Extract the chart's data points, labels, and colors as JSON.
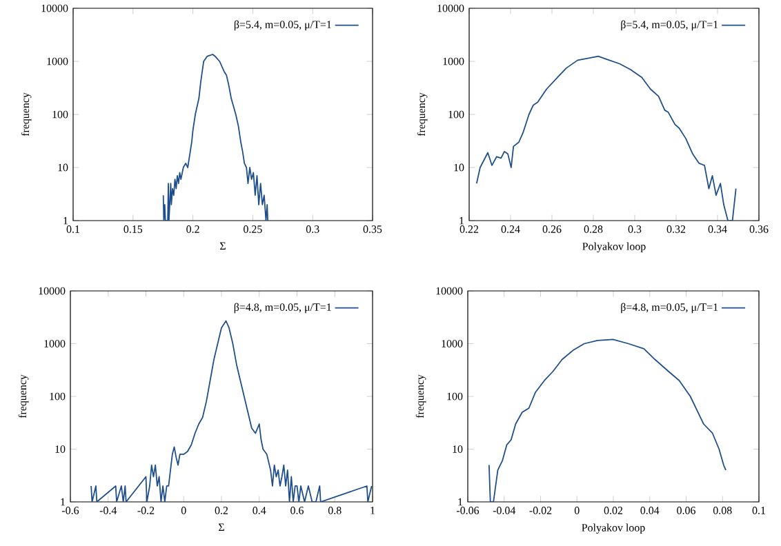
{
  "chart_data": [
    {
      "type": "line",
      "xlabel": "Σ",
      "ylabel": "frequency",
      "xlim": [
        0.1,
        0.35
      ],
      "xticks": [
        0.1,
        0.15,
        0.2,
        0.25,
        0.3,
        0.35
      ],
      "ylim": [
        1,
        10000
      ],
      "yticks": [
        1,
        10,
        100,
        1000,
        10000
      ],
      "log": true,
      "legend": "top right",
      "x": [
        0.1753,
        0.1757,
        0.1765,
        0.177,
        0.179,
        0.1795,
        0.18,
        0.1815,
        0.182,
        0.183,
        0.184,
        0.185,
        0.186,
        0.187,
        0.188,
        0.189,
        0.19,
        0.192,
        0.194,
        0.1957,
        0.199,
        0.2,
        0.202,
        0.205,
        0.2065,
        0.208,
        0.209,
        0.212,
        0.2145,
        0.2165,
        0.2185,
        0.2223,
        0.226,
        0.228,
        0.23,
        0.232,
        0.2358,
        0.238,
        0.24,
        0.2415,
        0.243,
        0.2447,
        0.246,
        0.2475,
        0.249,
        0.2505,
        0.252,
        0.2535,
        0.255,
        0.2565,
        0.258,
        0.2595,
        0.261,
        0.262,
        0.2625
      ],
      "series": [
        {
          "name": "β=5.4, m=0.05, μ/T=1",
          "color": "#1f4e8c",
          "values": [
            3,
            1,
            2,
            1,
            1,
            5,
            1,
            5,
            2,
            4,
            3,
            6,
            4,
            7,
            5,
            8,
            6,
            10,
            12,
            10,
            30,
            50,
            100,
            200,
            400,
            700,
            1000,
            1250,
            1300,
            1350,
            1250,
            1000,
            650,
            550,
            350,
            200,
            100,
            60,
            30,
            20,
            12,
            10,
            5,
            10,
            6,
            8,
            3,
            7,
            2,
            5,
            2,
            3,
            1,
            2,
            1
          ]
        }
      ]
    },
    {
      "type": "line",
      "xlabel": "Polyakov loop",
      "ylabel": "frequency",
      "xlim": [
        0.22,
        0.36
      ],
      "xticks": [
        0.22,
        0.24,
        0.26,
        0.28,
        0.3,
        0.32,
        0.34,
        0.36
      ],
      "ylim": [
        1,
        10000
      ],
      "yticks": [
        1,
        10,
        100,
        1000,
        10000
      ],
      "log": true,
      "legend": "top right",
      "x": [
        0.2236,
        0.2253,
        0.229,
        0.231,
        0.2333,
        0.2354,
        0.237,
        0.2387,
        0.2403,
        0.2414,
        0.244,
        0.246,
        0.2489,
        0.251,
        0.2531,
        0.2574,
        0.2627,
        0.267,
        0.2724,
        0.2777,
        0.2824,
        0.2863,
        0.2927,
        0.298,
        0.3034,
        0.3076,
        0.3115,
        0.3145,
        0.3162,
        0.3194,
        0.3215,
        0.3247,
        0.328,
        0.3311,
        0.3337,
        0.3358,
        0.3375,
        0.3393,
        0.3414,
        0.343,
        0.345,
        0.3472,
        0.3489
      ],
      "series": [
        {
          "name": "β=5.4, m=0.05, μ/T=1",
          "color": "#1f4e8c",
          "values": [
            5,
            10,
            19,
            11,
            16,
            15,
            20,
            18,
            10,
            25,
            30,
            45,
            100,
            150,
            170,
            300,
            500,
            750,
            1050,
            1150,
            1250,
            1100,
            900,
            700,
            500,
            300,
            220,
            120,
            110,
            65,
            55,
            35,
            18,
            12,
            11,
            4,
            7,
            3,
            5,
            2,
            1,
            1,
            4
          ]
        }
      ]
    },
    {
      "type": "line",
      "xlabel": "Σ",
      "ylabel": "frequency",
      "xlim": [
        -0.6,
        1
      ],
      "xticks": [
        -0.6,
        -0.4,
        -0.2,
        0,
        0.2,
        0.4,
        0.6,
        0.8,
        1
      ],
      "ylim": [
        1,
        10000
      ],
      "yticks": [
        1,
        10,
        100,
        1000,
        10000
      ],
      "log": true,
      "legend": "top right",
      "x": [
        -0.49,
        -0.485,
        -0.465,
        -0.46,
        -0.36,
        -0.355,
        -0.33,
        -0.32,
        -0.31,
        -0.305,
        -0.2,
        -0.195,
        -0.18,
        -0.17,
        -0.16,
        -0.15,
        -0.14,
        -0.13,
        -0.12,
        -0.11,
        -0.1,
        -0.09,
        -0.08,
        -0.06,
        -0.05,
        -0.04,
        -0.03,
        -0.02,
        0,
        0.02,
        0.04,
        0.06,
        0.08,
        0.1,
        0.12,
        0.14,
        0.16,
        0.18,
        0.2,
        0.224,
        0.24,
        0.26,
        0.28,
        0.3,
        0.32,
        0.34,
        0.36,
        0.38,
        0.4,
        0.41,
        0.42,
        0.44,
        0.46,
        0.47,
        0.48,
        0.49,
        0.5,
        0.51,
        0.52,
        0.53,
        0.54,
        0.55,
        0.56,
        0.57,
        0.58,
        0.59,
        0.6,
        0.61,
        0.62,
        0.64,
        0.66,
        0.68,
        0.7,
        0.72,
        0.725,
        0.97,
        0.975,
        0.995
      ],
      "series": [
        {
          "name": "β=4.8, m=0.05, μ/T=1",
          "color": "#1f4e8c",
          "values": [
            2,
            1,
            2,
            1,
            2,
            1,
            2,
            1,
            2,
            1,
            3,
            1,
            2,
            5,
            3,
            5,
            2,
            3,
            1,
            2,
            1,
            2,
            2,
            8,
            11,
            7,
            5,
            8,
            8,
            9,
            12,
            20,
            30,
            40,
            80,
            200,
            500,
            1000,
            2000,
            2700,
            2000,
            1000,
            400,
            200,
            100,
            50,
            25,
            20,
            30,
            15,
            10,
            8,
            4,
            2,
            5,
            3,
            4,
            2,
            3,
            5,
            2,
            4,
            1,
            3,
            1,
            2,
            2,
            1,
            2,
            1,
            2,
            1,
            1,
            2,
            1,
            2,
            1,
            2
          ]
        }
      ]
    },
    {
      "type": "line",
      "xlabel": "Polyakov loop",
      "ylabel": "frequency",
      "xlim": [
        -0.06,
        0.1
      ],
      "xticks": [
        -0.06,
        -0.04,
        -0.02,
        0,
        0.02,
        0.04,
        0.06,
        0.08,
        0.1
      ],
      "ylim": [
        1,
        10000
      ],
      "yticks": [
        1,
        10,
        100,
        1000,
        10000
      ],
      "log": true,
      "legend": "top right",
      "x": [
        -0.0483,
        -0.0476,
        -0.0459,
        -0.0435,
        -0.041,
        -0.0386,
        -0.0362,
        -0.0337,
        -0.0301,
        -0.0264,
        -0.0228,
        -0.0179,
        -0.0131,
        -0.0082,
        -0.0021,
        0.004,
        0.0113,
        0.0198,
        0.0283,
        0.0368,
        0.0429,
        0.0502,
        0.0562,
        0.0623,
        0.0696,
        0.0745,
        0.0781,
        0.0806,
        0.0818
      ],
      "series": [
        {
          "name": "β=4.8, m=0.05, μ/T=1",
          "color": "#1f4e8c",
          "values": [
            5,
            1,
            1,
            4,
            6,
            12,
            15,
            30,
            50,
            60,
            120,
            200,
            300,
            500,
            750,
            1000,
            1150,
            1200,
            1000,
            800,
            500,
            300,
            200,
            100,
            30,
            20,
            10,
            5,
            4
          ]
        }
      ]
    }
  ]
}
